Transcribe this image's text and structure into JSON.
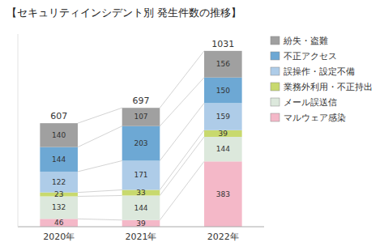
{
  "chart_data": {
    "type": "bar",
    "title": "【セキュリティインシデント別 発生件数の推移】",
    "categories": [
      "2020年",
      "2021年",
      "2022年"
    ],
    "series": [
      {
        "name": "マルウェア感染",
        "color": "#f4b8c8",
        "values": [
          46,
          39,
          383
        ]
      },
      {
        "name": "メール誤送信",
        "color": "#dce8dc",
        "values": [
          132,
          144,
          144
        ]
      },
      {
        "name": "業務外利用・不正持出",
        "color": "#c8d96e",
        "values": [
          23,
          33,
          39
        ]
      },
      {
        "name": "誤操作・設定不備",
        "color": "#aecce8",
        "values": [
          122,
          171,
          159
        ]
      },
      {
        "name": "不正アクセス",
        "color": "#6da8d4",
        "values": [
          144,
          203,
          150
        ]
      },
      {
        "name": "紛失・盗難",
        "color": "#a0a0a0",
        "values": [
          140,
          107,
          156
        ]
      }
    ],
    "totals": [
      607,
      697,
      1031
    ],
    "stacked": true,
    "data_labels": true,
    "ylim": [
      0,
      1130
    ],
    "tick_labels": "x",
    "grid": false,
    "legend": "upper right"
  }
}
